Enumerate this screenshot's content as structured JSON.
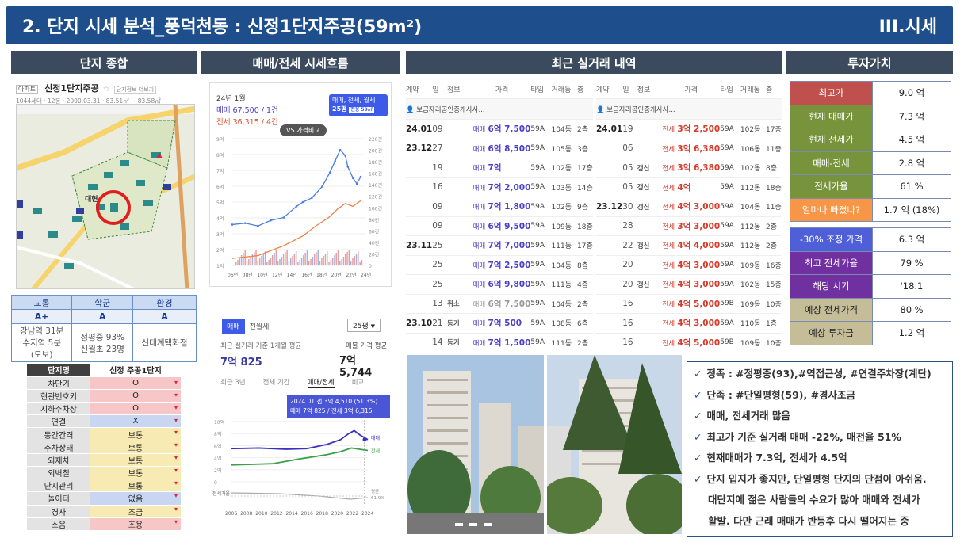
{
  "header": {
    "title": "2. 단지 시세 분석_풍덕천동 : 신정1단지주공(59m²)",
    "section": "III.시세"
  },
  "sections": {
    "s1": "단지 종합",
    "s2": "매매/전세 시세흐름",
    "s3": "최근 실거래 내역",
    "s4": "투자가치"
  },
  "complex": {
    "name": "신정1단지주공",
    "badge": "아파트",
    "info_link": "단지정보 더보기",
    "meta": "1044세대 · 12동 · 2000.03.31 · 83.51㎡ ~ 83.58㎡",
    "map_label": "대현"
  },
  "score": {
    "headers": [
      "교통",
      "학군",
      "환경"
    ],
    "grades": [
      "A+",
      "A",
      "A"
    ],
    "details": [
      "강남역 31분\n수지역 5분\n(도보)",
      "정평중 93%\n신월초 23명",
      "신대계택화점"
    ]
  },
  "attributes": {
    "head_key": "단지명",
    "head_val": "신정 주공1단지",
    "rows": [
      {
        "k": "차단기",
        "v": "O",
        "c": "#f7c7c7"
      },
      {
        "k": "현관번호키",
        "v": "O",
        "c": "#f7c7c7"
      },
      {
        "k": "지하주차장",
        "v": "O",
        "c": "#f7c7c7"
      },
      {
        "k": "연결",
        "v": "X",
        "c": "#c8d6f2"
      },
      {
        "k": "동간간격",
        "v": "보통",
        "c": "#f7eab3"
      },
      {
        "k": "주차상태",
        "v": "보통",
        "c": "#f7eab3"
      },
      {
        "k": "외제차",
        "v": "보통",
        "c": "#f7eab3"
      },
      {
        "k": "외벽칠",
        "v": "보통",
        "c": "#f7eab3"
      },
      {
        "k": "단지관리",
        "v": "보통",
        "c": "#f7eab3"
      },
      {
        "k": "놀이터",
        "v": "없음",
        "c": "#c8d6f2"
      },
      {
        "k": "경사",
        "v": "조금",
        "c": "#f7eab3"
      },
      {
        "k": "소음",
        "v": "조용",
        "c": "#f7c7c7"
      }
    ]
  },
  "trend": {
    "date": "24년 1월",
    "sale": "매매 67,500 / 1건",
    "jeonse": "전세 36,315 / 4건",
    "filter": "매매, 전세, 월세",
    "size": "25평",
    "size_sub": "전용 59㎡",
    "compare": "VS 가격비교",
    "y_left": [
      "9억",
      "8억",
      "7억",
      "6억",
      "5억",
      "4억",
      "3억",
      "2억",
      "1억"
    ],
    "y_right": [
      "220건",
      "200건",
      "180건",
      "160건",
      "140건",
      "120건",
      "100건",
      "80건",
      "60건",
      "40건",
      "20건",
      "0"
    ],
    "x": [
      "06년",
      "08년",
      "10년",
      "12년",
      "14년",
      "16년",
      "18년",
      "20년",
      "22년",
      "24년"
    ]
  },
  "avg": {
    "tabs": [
      "매매",
      "전월세"
    ],
    "size": "25평",
    "label1": "최근 실거래 기준 1개월 평균",
    "val1": "7억 825",
    "label2": "매물 가격 평균",
    "val2": "7억 5,744",
    "ptabs": [
      "최근 3년",
      "전체 기간",
      "매매/전세",
      "비교"
    ],
    "tip1": "2024.01  갭 3억 4,510 (51.3%)",
    "tip2": "매매 7억 825 / 전세 3억 6,315",
    "y": [
      "10억",
      "8억",
      "6억",
      "4억",
      "2억",
      "0"
    ],
    "x": [
      "2006",
      "2008",
      "2010",
      "2012",
      "2014",
      "2016",
      "2018",
      "2020",
      "2022",
      "2024"
    ],
    "s_sale": "매매",
    "s_jeonse": "전세",
    "rate_label": "전세가율",
    "rate_avg": "평균",
    "rate_val": "61.9%"
  },
  "deals": {
    "headers": [
      "계약",
      "일",
      "정보",
      "가격",
      "타입",
      "거래동",
      "층"
    ],
    "agent": "보금자리공인중개사사...",
    "left": [
      {
        "m": "24.01",
        "d": "09",
        "i": "",
        "kind": "매매",
        "price": "6억 7,500",
        "t": "59A",
        "dong": "104동",
        "f": "2층"
      },
      {
        "m": "23.12",
        "d": "27",
        "i": "",
        "kind": "매매",
        "price": "6억 8,500",
        "t": "59A",
        "dong": "105동",
        "f": "3층"
      },
      {
        "m": "",
        "d": "19",
        "i": "",
        "kind": "매매",
        "price": "7억",
        "t": "59A",
        "dong": "102동",
        "f": "17층"
      },
      {
        "m": "",
        "d": "16",
        "i": "",
        "kind": "매매",
        "price": "7억 2,000",
        "t": "59A",
        "dong": "103동",
        "f": "14층"
      },
      {
        "m": "",
        "d": "09",
        "i": "",
        "kind": "매매",
        "price": "7억 1,800",
        "t": "59A",
        "dong": "102동",
        "f": "9층"
      },
      {
        "m": "",
        "d": "09",
        "i": "",
        "kind": "매매",
        "price": "6억 9,500",
        "t": "59A",
        "dong": "109동",
        "f": "18층"
      },
      {
        "m": "23.11",
        "d": "25",
        "i": "",
        "kind": "매매",
        "price": "7억 7,000",
        "t": "59A",
        "dong": "111동",
        "f": "17층"
      },
      {
        "m": "",
        "d": "25",
        "i": "",
        "kind": "매매",
        "price": "7억 2,500",
        "t": "59A",
        "dong": "104동",
        "f": "8층"
      },
      {
        "m": "",
        "d": "25",
        "i": "",
        "kind": "매매",
        "price": "6억 9,800",
        "t": "59A",
        "dong": "111동",
        "f": "4층"
      },
      {
        "m": "",
        "d": "13",
        "i": "취소",
        "kind": "매매",
        "price": "6억 7,500",
        "t": "59A",
        "dong": "104동",
        "f": "2층",
        "cancel": true
      },
      {
        "m": "23.10",
        "d": "21",
        "i": "등기",
        "kind": "매매",
        "price": "7억 500",
        "t": "59A",
        "dong": "108동",
        "f": "6층"
      },
      {
        "m": "",
        "d": "14",
        "i": "등기",
        "kind": "매매",
        "price": "7억 1,500",
        "t": "59A",
        "dong": "111동",
        "f": "2층"
      }
    ],
    "right": [
      {
        "m": "24.01",
        "d": "19",
        "i": "",
        "kind": "전세",
        "price": "3억 2,500",
        "t": "59A",
        "dong": "102동",
        "f": "17층"
      },
      {
        "m": "",
        "d": "06",
        "i": "",
        "kind": "전세",
        "price": "3억 6,380",
        "t": "59A",
        "dong": "106동",
        "f": "11층"
      },
      {
        "m": "",
        "d": "05",
        "i": "갱신",
        "kind": "전세",
        "price": "3억 6,380",
        "t": "59A",
        "dong": "102동",
        "f": "8층"
      },
      {
        "m": "",
        "d": "05",
        "i": "갱신",
        "kind": "전세",
        "price": "4억",
        "t": "59A",
        "dong": "112동",
        "f": "18층"
      },
      {
        "m": "23.12",
        "d": "30",
        "i": "갱신",
        "kind": "전세",
        "price": "4억 3,000",
        "t": "59A",
        "dong": "104동",
        "f": "11층"
      },
      {
        "m": "",
        "d": "28",
        "i": "",
        "kind": "전세",
        "price": "3억 3,000",
        "t": "59A",
        "dong": "112동",
        "f": "2층"
      },
      {
        "m": "",
        "d": "22",
        "i": "갱신",
        "kind": "전세",
        "price": "4억 4,000",
        "t": "59A",
        "dong": "112동",
        "f": "2층"
      },
      {
        "m": "",
        "d": "20",
        "i": "",
        "kind": "전세",
        "price": "4억 3,000",
        "t": "59A",
        "dong": "109동",
        "f": "16층"
      },
      {
        "m": "",
        "d": "20",
        "i": "갱신",
        "kind": "전세",
        "price": "4억 3,000",
        "t": "59A",
        "dong": "102동",
        "f": "15층"
      },
      {
        "m": "",
        "d": "16",
        "i": "",
        "kind": "전세",
        "price": "4억 5,000",
        "t": "59B",
        "dong": "109동",
        "f": "10층"
      },
      {
        "m": "",
        "d": "16",
        "i": "",
        "kind": "전세",
        "price": "4억 3,000",
        "t": "59A",
        "dong": "110동",
        "f": "1층"
      },
      {
        "m": "",
        "d": "16",
        "i": "",
        "kind": "전세",
        "price": "4억 5,000",
        "t": "59B",
        "dong": "109동",
        "f": "10층"
      }
    ]
  },
  "invest": {
    "top": [
      {
        "l": "최고가",
        "v": "9.0 억",
        "c": "#c0504d"
      },
      {
        "l": "현재 매매가",
        "v": "7.3 억",
        "c": "#77933c"
      },
      {
        "l": "현재 전세가",
        "v": "4.5 억",
        "c": "#77933c"
      },
      {
        "l": "매매-전세",
        "v": "2.8 억",
        "c": "#77933c"
      },
      {
        "l": "전세가율",
        "v": "61 %",
        "c": "#77933c"
      },
      {
        "l": "얼마나 빠졌나?",
        "v": "1.7 억 (18%)",
        "c": "#f79646"
      }
    ],
    "bottom": [
      {
        "l": "-30% 조정 가격",
        "v": "6.3 억",
        "c": "#4f5fd8"
      },
      {
        "l": "최고 전세가율",
        "v": "79 %",
        "c": "#7030a0"
      },
      {
        "l": "해당 시기",
        "v": "'18.1",
        "c": "#7030a0"
      },
      {
        "l": "예상 전세가격",
        "v": "80 %",
        "c": "#c4bd97",
        "dark": true
      },
      {
        "l": "예상 투자금",
        "v": "1.2 억",
        "c": "#c4bd97",
        "dark": true
      }
    ]
  },
  "bullets": [
    "정족 : #정평중(93),#역접근성, #연결주차장(계단)",
    "단족 : #단일평형(59), #경사조금",
    "매매, 전세거래 많음",
    "최고가 기준 실거래 매매 -22%, 매전율 51%",
    "현재매매가 7.3억, 전세가 4.5억",
    "단지 입지가 좋지만, 단일평형 단지의 단점이 아쉬움.",
    "대단지에 젊은 사람들의 수요가 많아 매매와 전세가",
    "활발. 다만 근래 매매가 반등후 다시 떨어지는 중"
  ],
  "colors": {
    "banner": "#1f4e8c",
    "section": "#3b4a5c",
    "sale": "#4a3fc9",
    "jeonse": "#e0522f"
  }
}
